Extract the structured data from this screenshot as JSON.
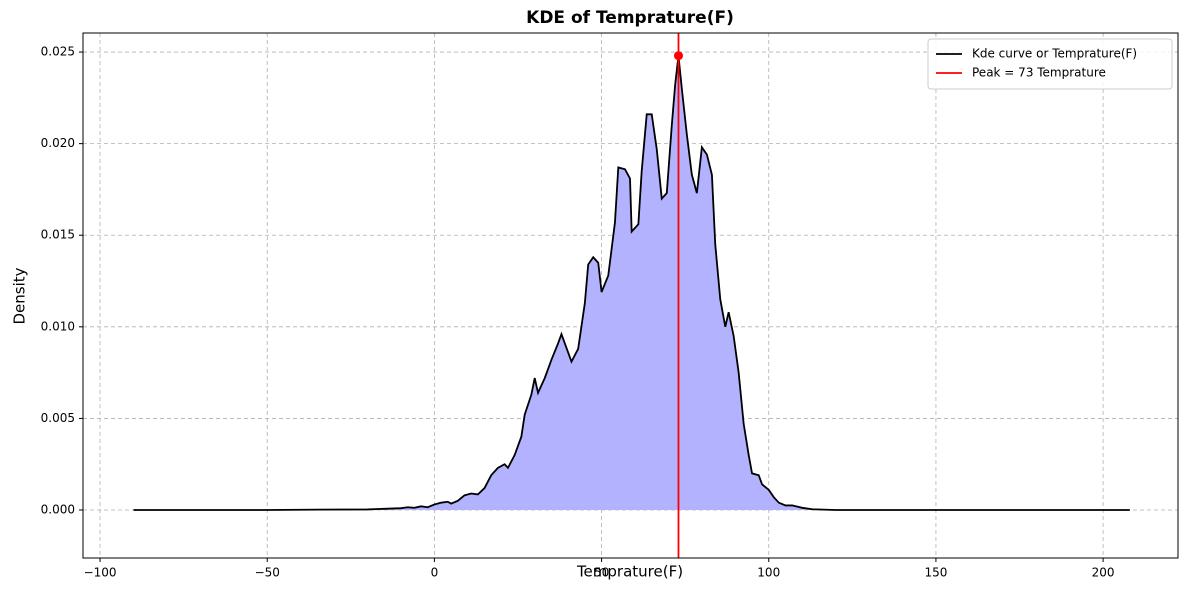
{
  "chart_data": {
    "type": "kde",
    "title": "KDE of Temprature(F)",
    "x_label": "Temprature(F)",
    "y_label": "Density",
    "xlim": [
      -105.1,
      222.4
    ],
    "ylim": [
      -0.00262,
      0.02604
    ],
    "xticks": [
      {
        "value": -100,
        "label": "−100"
      },
      {
        "value": -50,
        "label": "−50"
      },
      0,
      50,
      100,
      150,
      200
    ],
    "yticks": [
      {
        "value": 0,
        "label": "0.000"
      },
      {
        "value": 0.005,
        "label": "0.005"
      },
      {
        "value": 0.01,
        "label": "0.010"
      },
      {
        "value": 0.015,
        "label": "0.015"
      },
      {
        "value": 0.02,
        "label": "0.020"
      },
      {
        "value": 0.025,
        "label": "0.025"
      }
    ],
    "grid": true,
    "legend": "upper right",
    "fill_color": "#b2b2ff",
    "series": [
      {
        "name": "Kde curve or Temprature(F)",
        "color": "#000000",
        "x": [
          -90,
          -50,
          -35,
          -20,
          -10,
          -8,
          -6,
          -4,
          -2,
          0,
          2,
          4,
          5,
          7,
          9,
          11,
          13,
          15,
          17,
          19,
          21,
          22,
          24,
          26,
          27,
          29,
          30,
          31,
          33,
          35,
          37,
          38,
          39,
          41,
          43,
          45,
          46,
          47.5,
          49,
          50,
          52,
          54,
          55,
          57,
          58.5,
          59,
          61,
          62,
          63.5,
          65,
          66.5,
          68,
          69.5,
          71,
          72,
          73,
          74,
          75.5,
          77,
          78.5,
          80,
          81.5,
          83,
          84,
          85.5,
          87,
          88,
          89.5,
          91,
          92.5,
          94,
          95,
          97,
          98,
          100,
          101.5,
          103,
          105,
          107,
          110,
          113,
          120,
          150,
          208
        ],
        "values": [
          0,
          0,
          2e-05,
          3e-05,
          0.0001,
          0.00015,
          0.00012,
          0.0002,
          0.00015,
          0.0003,
          0.0004,
          0.00045,
          0.00035,
          0.0005,
          0.0008,
          0.0009,
          0.00085,
          0.0012,
          0.0019,
          0.0023,
          0.0025,
          0.0023,
          0.003,
          0.004,
          0.0052,
          0.0063,
          0.0072,
          0.0064,
          0.0072,
          0.0082,
          0.0091,
          0.0096,
          0.0091,
          0.0081,
          0.0088,
          0.0113,
          0.0134,
          0.0138,
          0.0135,
          0.0119,
          0.0128,
          0.0157,
          0.0187,
          0.0186,
          0.0181,
          0.0152,
          0.0156,
          0.0185,
          0.0216,
          0.0216,
          0.0197,
          0.017,
          0.0173,
          0.021,
          0.0232,
          0.0248,
          0.023,
          0.0205,
          0.0183,
          0.0173,
          0.0198,
          0.0194,
          0.0183,
          0.0145,
          0.0115,
          0.01,
          0.0108,
          0.0095,
          0.0075,
          0.0047,
          0.003,
          0.002,
          0.0019,
          0.0014,
          0.0011,
          0.0007,
          0.0004,
          0.00025,
          0.00025,
          0.00012,
          4e-05,
          0,
          0,
          0
        ]
      }
    ],
    "peak": {
      "name": "Peak = 73 Temprature",
      "color": "#ff0000",
      "x": 73,
      "y": 0.0248
    }
  }
}
